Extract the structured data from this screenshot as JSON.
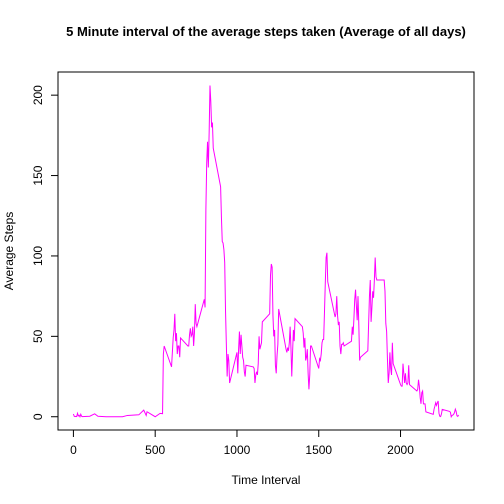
{
  "chart_data": {
    "type": "line",
    "title": "5 Minute interval of the average steps taken (Average of all days)",
    "xlabel": "Time Interval",
    "ylabel": "Average Steps",
    "x": [
      0,
      5,
      10,
      15,
      20,
      25,
      30,
      35,
      40,
      45,
      50,
      55,
      100,
      130,
      150,
      200,
      230,
      300,
      330,
      400,
      430,
      445,
      450,
      500,
      530,
      545,
      550,
      555,
      600,
      610,
      615,
      620,
      625,
      630,
      635,
      640,
      645,
      650,
      655,
      700,
      705,
      710,
      715,
      720,
      725,
      730,
      735,
      740,
      745,
      750,
      755,
      800,
      805,
      810,
      815,
      820,
      825,
      830,
      835,
      840,
      845,
      850,
      855,
      900,
      905,
      910,
      915,
      920,
      925,
      930,
      935,
      940,
      945,
      950,
      955,
      1000,
      1005,
      1010,
      1015,
      1020,
      1025,
      1030,
      1035,
      1040,
      1045,
      1050,
      1055,
      1100,
      1105,
      1110,
      1115,
      1120,
      1125,
      1130,
      1135,
      1140,
      1145,
      1150,
      1155,
      1200,
      1205,
      1210,
      1215,
      1220,
      1225,
      1230,
      1235,
      1240,
      1245,
      1250,
      1255,
      1300,
      1305,
      1310,
      1315,
      1320,
      1325,
      1330,
      1335,
      1340,
      1345,
      1350,
      1355,
      1400,
      1405,
      1410,
      1415,
      1420,
      1425,
      1430,
      1435,
      1440,
      1445,
      1450,
      1455,
      1500,
      1505,
      1510,
      1515,
      1520,
      1525,
      1530,
      1535,
      1540,
      1545,
      1550,
      1555,
      1600,
      1605,
      1610,
      1615,
      1620,
      1625,
      1630,
      1635,
      1640,
      1645,
      1650,
      1655,
      1700,
      1705,
      1710,
      1715,
      1720,
      1725,
      1730,
      1735,
      1740,
      1745,
      1750,
      1755,
      1800,
      1805,
      1810,
      1815,
      1820,
      1825,
      1830,
      1835,
      1840,
      1845,
      1850,
      1855,
      1900,
      1905,
      1910,
      1915,
      1920,
      1925,
      1930,
      1935,
      1940,
      1945,
      1950,
      1955,
      2000,
      2005,
      2010,
      2015,
      2020,
      2025,
      2030,
      2035,
      2040,
      2045,
      2050,
      2055,
      2100,
      2105,
      2110,
      2115,
      2120,
      2125,
      2130,
      2135,
      2140,
      2145,
      2150,
      2155,
      2200,
      2205,
      2210,
      2215,
      2220,
      2225,
      2230,
      2235,
      2240,
      2245,
      2250,
      2255,
      2300,
      2305,
      2310,
      2315,
      2320,
      2325,
      2330,
      2335,
      2340,
      2345,
      2350,
      2355
    ],
    "series": [
      {
        "name": "Average Steps",
        "color": "#ff00ff",
        "values": [
          1.7,
          0.3,
          0.1,
          0.2,
          0.1,
          2.1,
          0.5,
          0.9,
          0,
          1.5,
          0.3,
          0.1,
          0.3,
          1.8,
          0.3,
          0,
          0,
          0,
          0.8,
          1.2,
          4.1,
          0.8,
          3.1,
          0,
          2.1,
          1.9,
          39,
          44,
          31,
          49,
          54,
          64,
          47,
          52,
          39,
          44,
          44,
          37,
          49,
          44,
          44,
          51,
          55,
          50,
          51,
          56,
          44,
          52,
          70,
          58,
          56,
          73,
          68,
          129,
          158,
          171,
          155,
          177,
          206,
          196,
          180,
          183,
          167,
          143,
          124,
          109,
          108,
          104,
          96,
          66,
          45,
          25,
          39,
          35,
          21,
          40,
          27,
          42,
          53,
          39,
          51,
          44,
          37,
          35,
          28,
          25,
          32,
          31,
          30,
          21,
          26,
          28,
          26,
          33,
          50,
          42,
          44,
          46,
          59,
          64,
          88,
          95,
          93,
          63,
          50,
          54,
          32,
          27,
          38,
          45,
          67,
          42,
          40,
          43,
          41,
          46,
          56,
          43,
          25,
          40,
          54,
          47,
          61,
          56,
          52,
          43,
          49,
          35,
          37,
          42,
          27,
          17,
          26,
          44,
          44,
          30,
          36,
          35,
          39,
          46,
          48,
          48,
          65,
          83,
          99,
          102,
          84,
          62,
          64,
          75,
          63,
          57,
          59,
          44,
          39,
          45,
          45,
          46,
          44,
          47,
          56,
          51,
          61,
          73,
          79,
          69,
          60,
          75,
          57,
          35,
          37,
          41,
          58,
          75,
          85,
          59,
          68,
          78,
          74,
          85,
          99,
          87,
          85,
          85,
          78,
          58,
          53,
          36,
          21,
          27,
          40,
          30,
          26,
          46,
          33,
          20,
          19,
          19,
          33,
          27,
          21,
          27,
          21,
          20,
          21,
          32,
          20,
          16,
          17,
          23,
          19,
          12,
          8,
          15,
          16,
          8,
          8,
          8,
          3,
          1.5,
          4.7,
          6.6,
          8.7,
          7.1,
          8.7,
          9.8,
          2.2,
          0.3,
          0.1,
          1.6,
          4.6,
          3.3,
          2.8,
          0,
          0.8,
          1,
          1.6,
          2.6,
          4.7,
          3.3,
          0.6,
          0.2,
          1.1
        ]
      }
    ],
    "xlim": [
      -94.2,
      2449.2
    ],
    "ylim": [
      -8.25,
      214.4
    ],
    "xticks": [
      0,
      500,
      1000,
      1500,
      2000
    ],
    "yticks": [
      0,
      50,
      100,
      150,
      200
    ]
  }
}
